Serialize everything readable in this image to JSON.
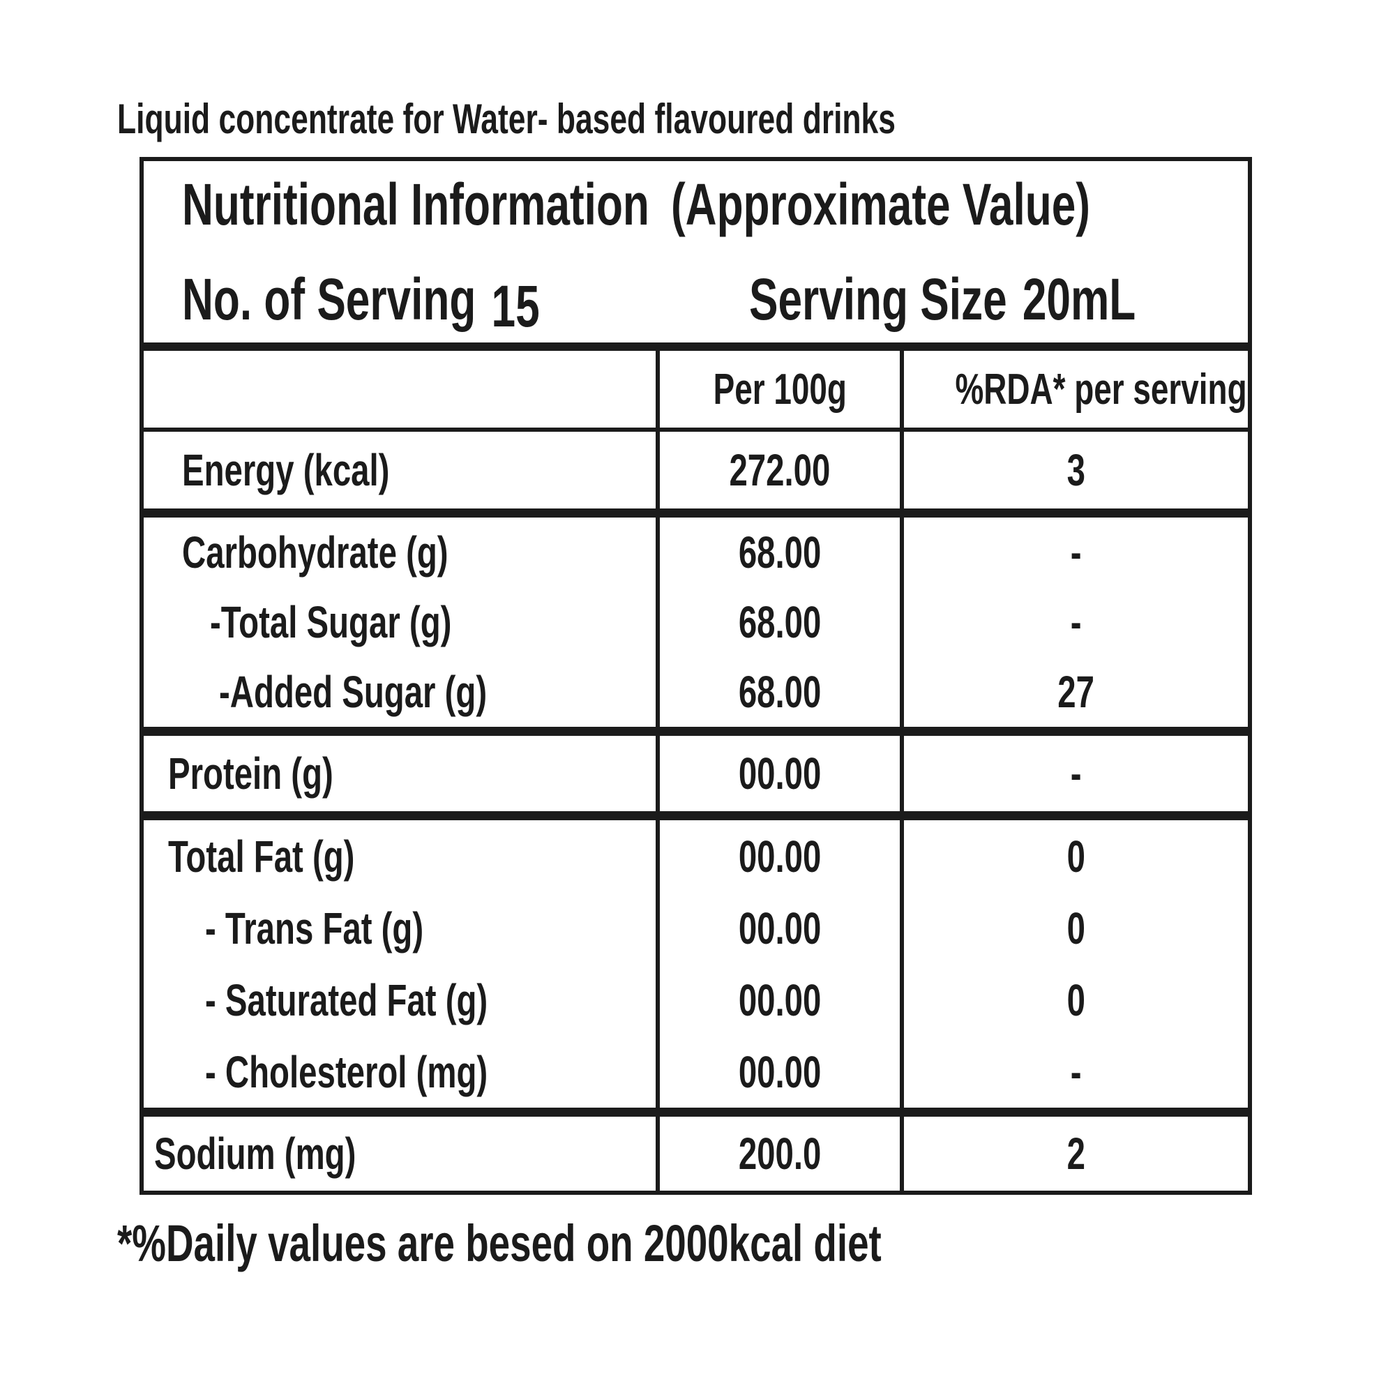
{
  "colors": {
    "ink": "#1b1b1b",
    "background": "#ffffff"
  },
  "page": {
    "title": "Liquid concentrate for Water- based flavoured drinks",
    "footnote": "*%Daily values are besed on 2000kcal diet"
  },
  "table": {
    "header": {
      "title": "Nutritional Information",
      "title_qualifier": "(Approximate Value)",
      "servings_label": "No. of Serving",
      "servings_value": "15",
      "serving_size_label": "Serving Size",
      "serving_size_value": "20mL"
    },
    "columns": {
      "per100g": "Per 100g",
      "rda": "%RDA* per serving"
    },
    "rows": {
      "energy": {
        "label": "Energy (kcal)",
        "per100g": "272.00",
        "rda": "3"
      },
      "carbohydrate": {
        "label": "Carbohydrate (g)",
        "per100g": "68.00",
        "rda": "-"
      },
      "total_sugar": {
        "label": "-Total Sugar (g)",
        "per100g": "68.00",
        "rda": "-"
      },
      "added_sugar": {
        "label": "-Added Sugar (g)",
        "per100g": "68.00",
        "rda": "27"
      },
      "protein": {
        "label": "Protein (g)",
        "per100g": "00.00",
        "rda": "-"
      },
      "total_fat": {
        "label": "Total Fat (g)",
        "per100g": "00.00",
        "rda": "0"
      },
      "trans_fat": {
        "label": "- Trans Fat (g)",
        "per100g": "00.00",
        "rda": "0"
      },
      "saturated_fat": {
        "label": "- Saturated Fat (g)",
        "per100g": "00.00",
        "rda": "0"
      },
      "cholesterol": {
        "label": "- Cholesterol (mg)",
        "per100g": "00.00",
        "rda": "-"
      },
      "sodium": {
        "label": "Sodium (mg)",
        "per100g": "200.0",
        "rda": "2"
      }
    }
  }
}
